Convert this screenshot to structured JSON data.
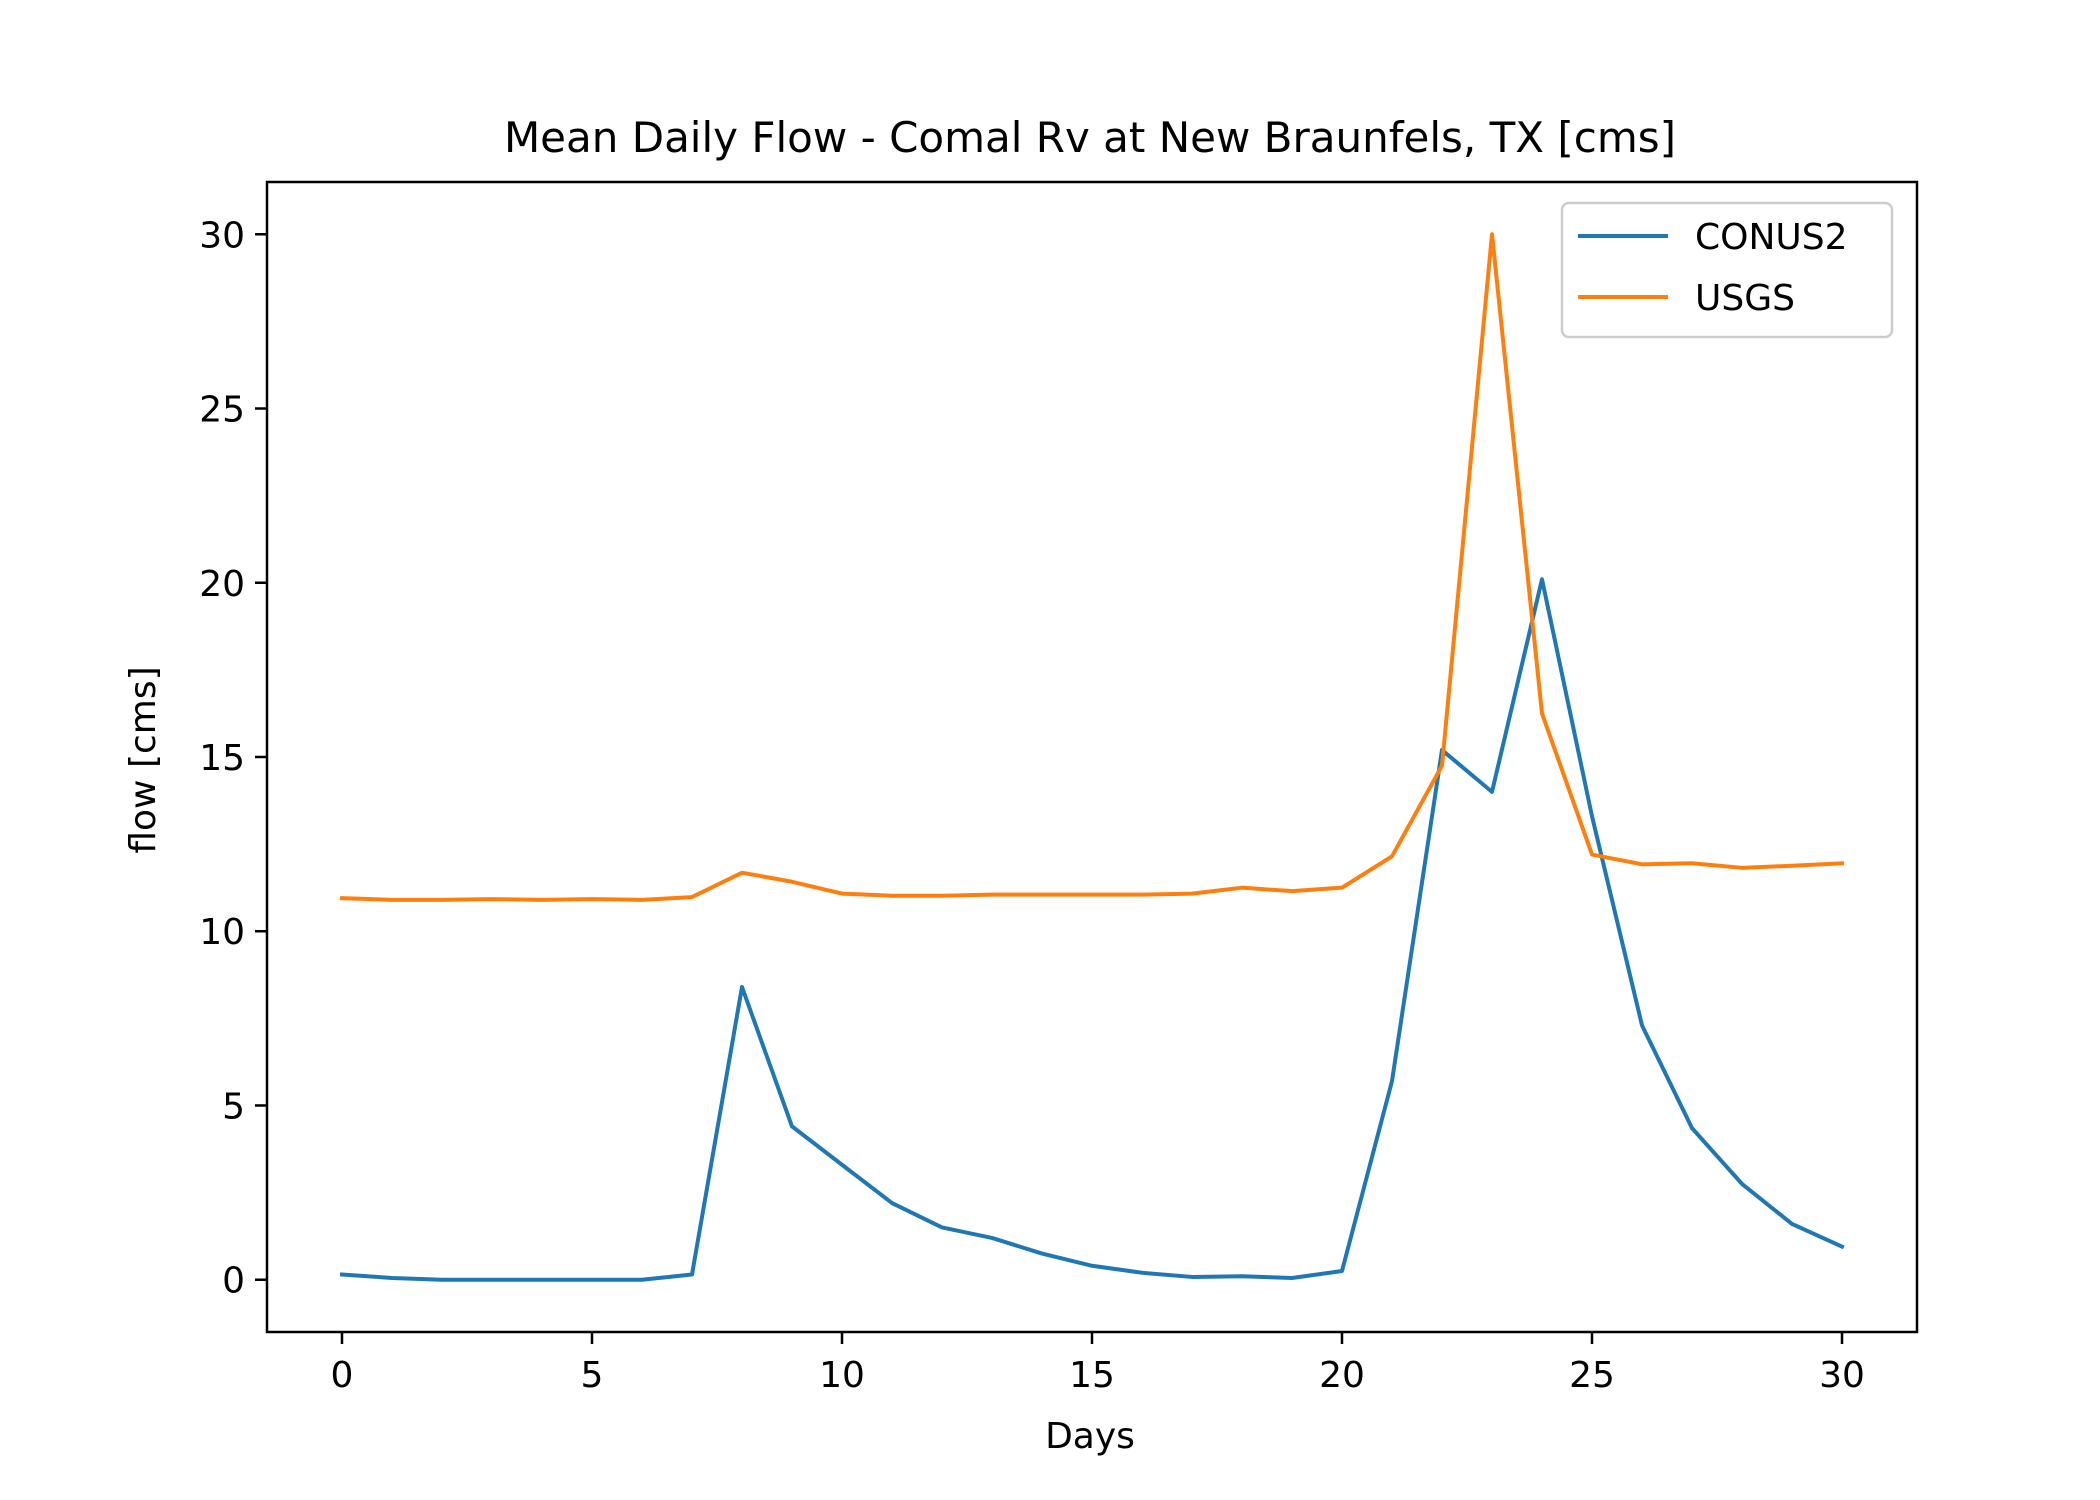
{
  "chart_data": {
    "type": "line",
    "title": "Mean Daily Flow - Comal Rv at New Braunfels, TX [cms]",
    "xlabel": "Days",
    "ylabel": "flow [cms]",
    "xlim": [
      -1.5,
      31.5
    ],
    "ylim": [
      -1.5,
      31.5
    ],
    "xticks": [
      0,
      5,
      10,
      15,
      20,
      25,
      30
    ],
    "yticks": [
      0,
      5,
      10,
      15,
      20,
      25,
      30
    ],
    "grid": false,
    "legend_position": "top-right",
    "x": [
      0,
      1,
      2,
      3,
      4,
      5,
      6,
      7,
      8,
      9,
      10,
      11,
      12,
      13,
      14,
      15,
      16,
      17,
      18,
      19,
      20,
      21,
      22,
      23,
      24,
      25,
      26,
      27,
      28,
      29,
      30
    ],
    "series": [
      {
        "name": "CONUS2",
        "color": "#1f77b4",
        "values": [
          0.15,
          0.05,
          0.0,
          0.0,
          0.0,
          0.0,
          0.0,
          0.15,
          8.4,
          4.4,
          3.3,
          2.2,
          1.5,
          1.2,
          0.75,
          0.4,
          0.2,
          0.08,
          0.1,
          0.05,
          0.25,
          5.7,
          15.2,
          14.0,
          20.1,
          13.3,
          7.3,
          4.35,
          2.75,
          1.6,
          0.95
        ]
      },
      {
        "name": "USGS",
        "color": "#ff7f0e",
        "values": [
          10.95,
          10.9,
          10.9,
          10.92,
          10.9,
          10.92,
          10.9,
          10.98,
          11.68,
          11.42,
          11.08,
          11.02,
          11.02,
          11.05,
          11.05,
          11.05,
          11.05,
          11.08,
          11.25,
          11.15,
          11.25,
          12.15,
          14.75,
          30.0,
          16.25,
          12.2,
          11.92,
          11.95,
          11.82,
          11.88,
          11.95
        ]
      }
    ]
  }
}
